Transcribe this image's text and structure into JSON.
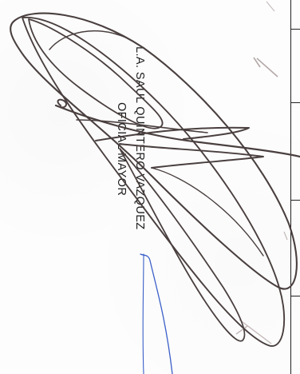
{
  "signatory": {
    "name": "L.A.  SAUL QUINTERO VAZQUEZ",
    "title": "OFICIAL MAYOR"
  },
  "colors": {
    "signature_ink": "#4a3f3f",
    "blue_ink": "#3a5fc8",
    "faint_stroke": "#b5a9a9",
    "form_lines": "#222222"
  }
}
